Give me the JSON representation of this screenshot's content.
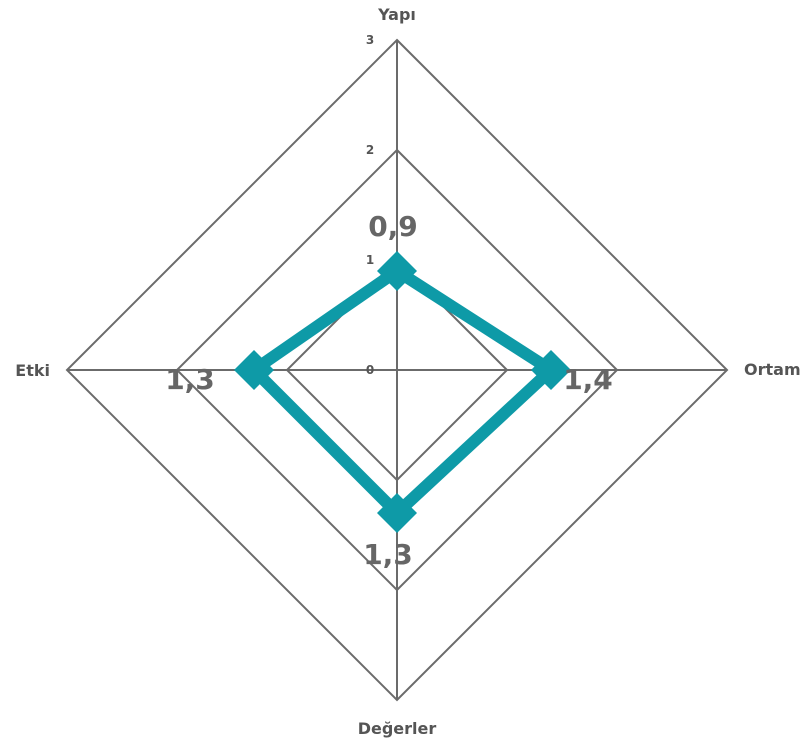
{
  "chart_data": {
    "type": "radar",
    "axes": [
      "Yapı",
      "Ortam",
      "Değerler",
      "Etki"
    ],
    "values": [
      0.9,
      1.4,
      1.3,
      1.3
    ],
    "data_labels": [
      "0,9",
      "1,4",
      "1,3",
      "1,3"
    ],
    "r_ticks": [
      0,
      1,
      2,
      3
    ],
    "r_tick_labels": [
      "0",
      "1",
      "2",
      "3"
    ],
    "rlim": [
      0,
      3
    ],
    "grid": true,
    "series_color": "#0e9aa7",
    "grid_color": "#6b6b6b",
    "label_color": "#555555"
  }
}
